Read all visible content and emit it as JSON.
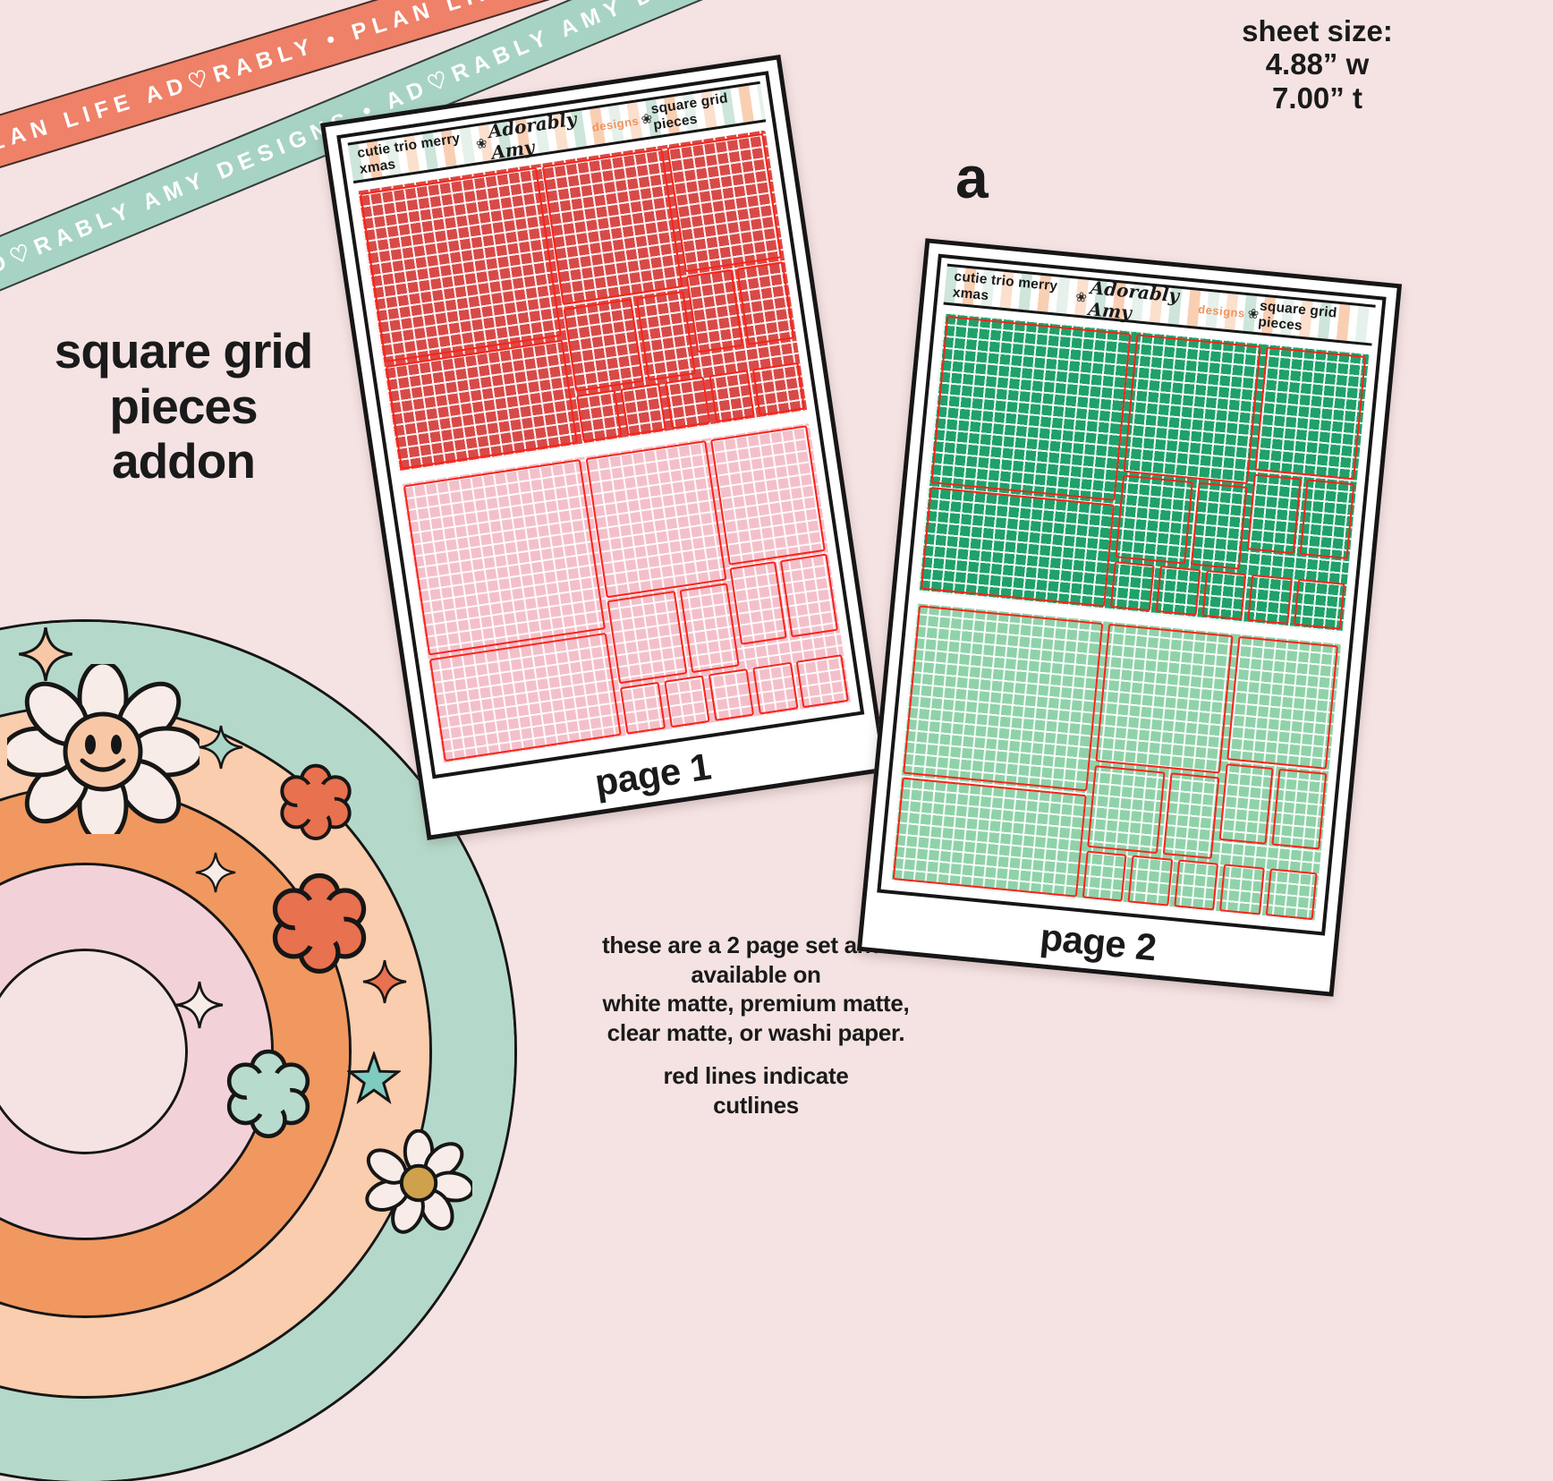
{
  "ribbons": {
    "coral": {
      "text": "PLAN LIFE AD♡RABLY • PLAN LIFE AD♡RAB",
      "color": "#ee8168"
    },
    "mint": {
      "text": "AD♡RABLY AMY DESIGNS • AD♡RABLY AMY DESIGNS • A",
      "color": "#a7d3c5"
    }
  },
  "sheet_size_note": {
    "lines": [
      "sheet size:",
      "4.88” w",
      "7.00” t"
    ]
  },
  "stray_letter": "a",
  "title": {
    "lines": [
      "square grid",
      "pieces",
      "addon"
    ]
  },
  "sheets": [
    {
      "header_left": "cutie trio merry xmas",
      "brand_script": "Adorably Amy",
      "brand_suffix": "designs",
      "brand_flower": "❀",
      "header_right": "square grid pieces",
      "label": "page 1",
      "top_color": "#d84a47",
      "bottom_color": "#f3c0ca"
    },
    {
      "header_left": "cutie trio merry xmas",
      "brand_script": "Adorably Amy",
      "brand_suffix": "designs",
      "brand_flower": "❀",
      "header_right": "square grid pieces",
      "label": "page 2",
      "top_color": "#1fa169",
      "bottom_color": "#8fd2a9"
    }
  ],
  "availability_note": {
    "lines": [
      "these are a 2 page set and is",
      "available on",
      "white matte, premium matte,",
      "clear matte, or washi paper."
    ]
  },
  "cutline_note": {
    "lines": [
      "red lines indicate",
      "cutlines"
    ]
  },
  "rainbow": {
    "bands": [
      "#b4d9ca",
      "#f9cdad",
      "#f0985f",
      "#f2d2d8"
    ]
  },
  "colors": {
    "background": "#f5e3e3",
    "cutline": "#fa2319",
    "frame": "#161616"
  }
}
